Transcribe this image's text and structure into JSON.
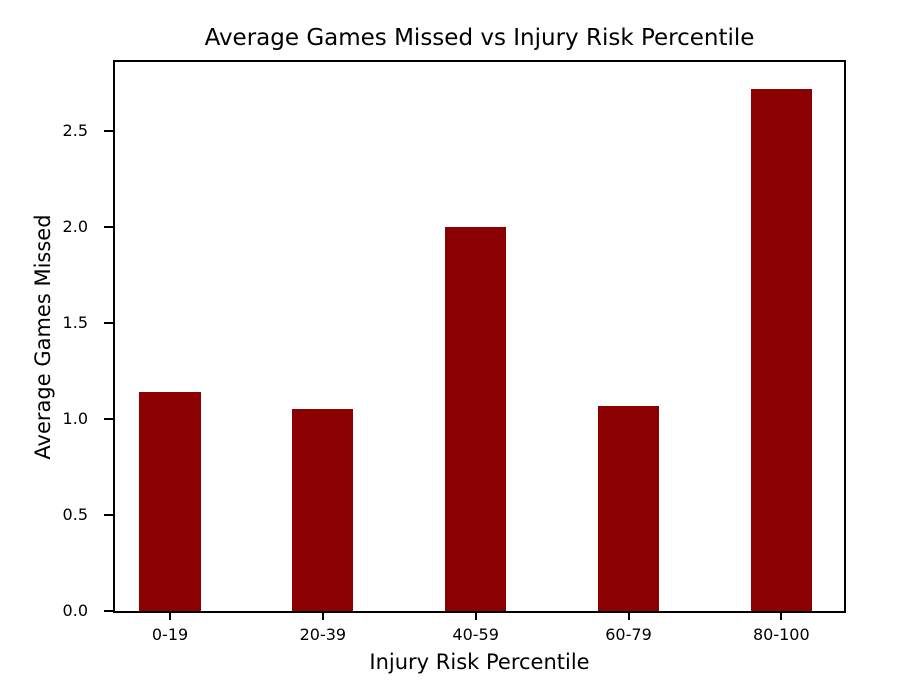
{
  "chart_data": {
    "type": "bar",
    "title": "Average Games Missed vs Injury Risk Percentile",
    "xlabel": "Injury Risk Percentile",
    "ylabel": "Average Games Missed",
    "categories": [
      "0-19",
      "20-39",
      "40-59",
      "60-79",
      "80-100"
    ],
    "values": [
      1.14,
      1.05,
      2.0,
      1.07,
      2.72
    ],
    "yticks": [
      0.0,
      0.5,
      1.0,
      1.5,
      2.0,
      2.5
    ],
    "ytick_labels": [
      "0.0",
      "0.5",
      "1.0",
      "1.5",
      "2.0",
      "2.5"
    ],
    "ylim": [
      0,
      2.86
    ],
    "xlim": [
      -0.36,
      4.41
    ],
    "bar_width_units": 0.4,
    "bar_color": "#8B0000",
    "spine_color": "#000000",
    "background_color": "#ffffff",
    "grid": false,
    "legend_visible": false
  }
}
